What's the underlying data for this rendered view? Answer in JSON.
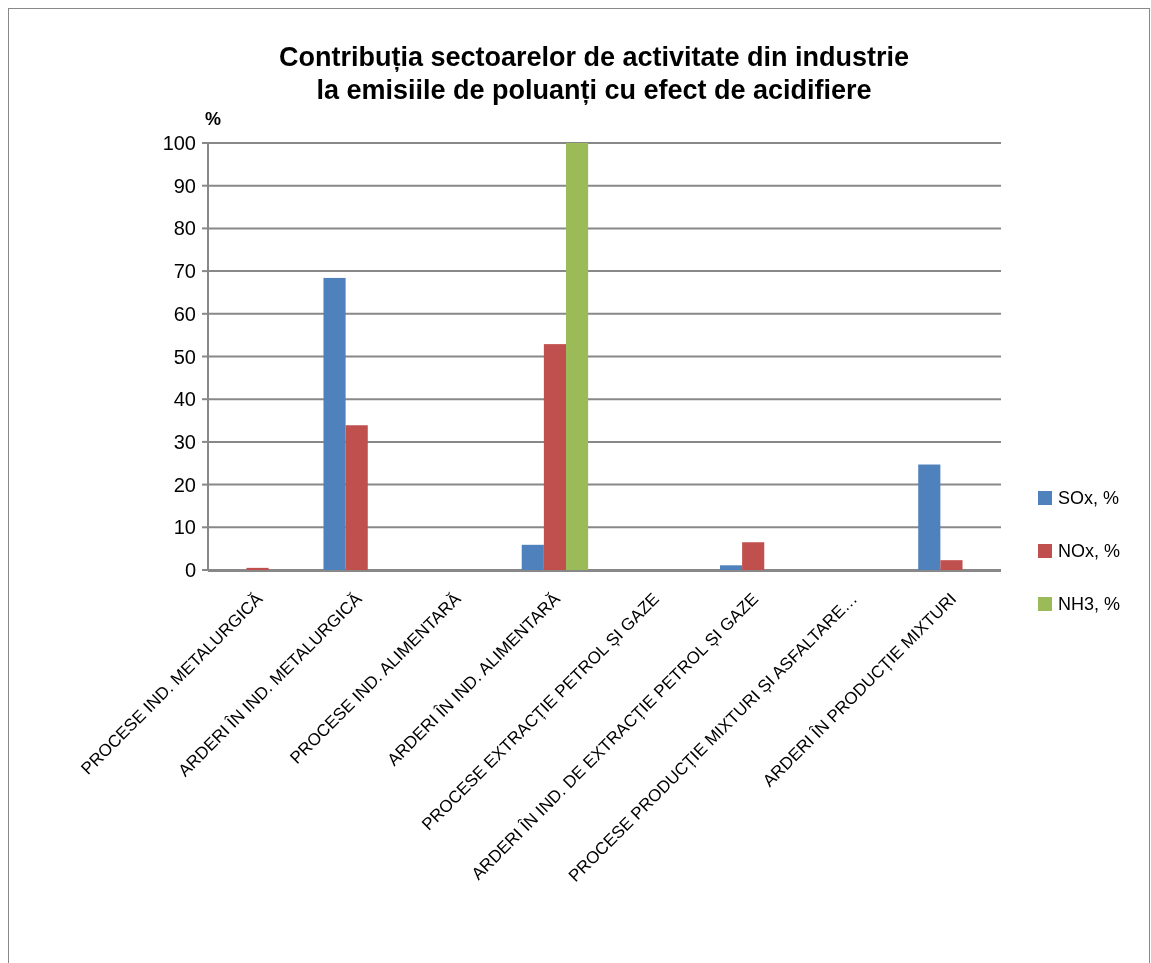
{
  "chart_data": {
    "type": "bar",
    "title": "Contribuția sectoarelor de activitate din industrie la emisiile de poluanți cu efect de acidifiere",
    "ylabel": "%",
    "categories": [
      "PROCESE IND. METALURGICĂ",
      "ARDERI ÎN IND. METALURGICĂ",
      "PROCESE IND. ALIMENTARĂ",
      "ARDERI ÎN IND. ALIMENTARĂ",
      "PROCESE EXTRACȚIE PETROL ȘI GAZE",
      "ARDERI ÎN IND. DE EXTRACȚIE PETROL ȘI GAZE",
      "PROCESE PRODUCȚIE MIXTURI ȘI ASFALTARE…",
      "ARDERI ÎN PRODUCȚIE MIXTURI"
    ],
    "series": [
      {
        "name": "SOx, %",
        "color": "#4f81bd",
        "values": [
          0,
          68.4,
          0,
          5.9,
          0,
          1.1,
          0,
          24.7
        ]
      },
      {
        "name": "NOx, %",
        "color": "#c0504d",
        "values": [
          0.5,
          33.9,
          0,
          52.9,
          0,
          6.5,
          0,
          2.3
        ]
      },
      {
        "name": "NH3, %",
        "color": "#9bbb59",
        "values": [
          0,
          0,
          0,
          100,
          0,
          0,
          0,
          0
        ]
      }
    ],
    "ylim": [
      0,
      100
    ],
    "yticks": [
      0,
      10,
      20,
      30,
      40,
      50,
      60,
      70,
      80,
      90,
      100
    ],
    "grid": "y",
    "legend": "right"
  }
}
